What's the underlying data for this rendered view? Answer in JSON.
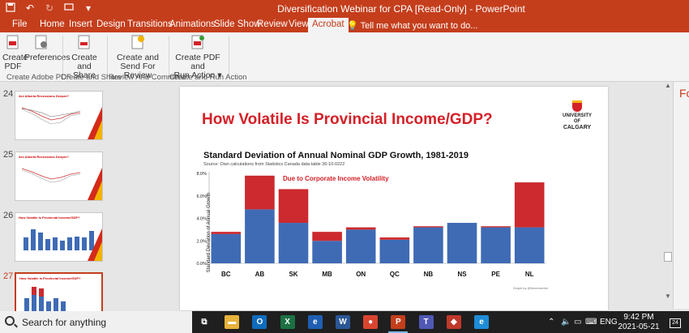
{
  "titlebar": {
    "title": "Diversification Webinar for CPA [Read-Only]  -  PowerPoint"
  },
  "menu": {
    "tabs": [
      "File",
      "Home",
      "Insert",
      "Design",
      "Transitions",
      "Animations",
      "Slide Show",
      "Review",
      "View",
      "Acrobat"
    ],
    "active_tab": "Acrobat",
    "tell_me": "Tell me what you want to do..."
  },
  "ribbon": {
    "buttons": [
      {
        "label1": "Create",
        "label2": "PDF"
      },
      {
        "label1": "Preferences",
        "label2": ""
      },
      {
        "label1": "Create",
        "label2": "and Share"
      },
      {
        "label1": "Create and",
        "label2": "Send For Review"
      },
      {
        "label1": "Create PDF and",
        "label2": "Run Action ▾"
      }
    ],
    "groups": [
      "Create Adobe PDF",
      "Create and Share",
      "Review And Comment",
      "Create and Run Action"
    ]
  },
  "thumbnails": [
    {
      "number": "24",
      "title": "Are Alberta Recessions Deeper?"
    },
    {
      "number": "25",
      "title": "Are Alberta Recessions Deeper?"
    },
    {
      "number": "26",
      "title": "How Volatile Is Provincial Income/GDP?"
    },
    {
      "number": "27",
      "title": "How Volatile Is Provincial Income/GDP?"
    }
  ],
  "slide": {
    "title": "How Volatile Is Provincial Income/GDP?",
    "logo_line1": "UNIVERSITY OF",
    "logo_line2": "CALGARY",
    "credit": "Graph by @trevortombe"
  },
  "right_panel": {
    "letter": "Fo"
  },
  "chart_data": {
    "type": "bar",
    "stacked": true,
    "title": "Standard Deviation of Annual Nominal GDP Growth, 1981-2019",
    "subtitle": "Source: Own calculations from Statistics Canada data table 36-10-0222",
    "annotation": "Due to Corporate Income Volatility",
    "ylabel": "Standard Deviation of Annual Growth",
    "xlabel": "",
    "categories": [
      "BC",
      "AB",
      "SK",
      "MB",
      "ON",
      "QC",
      "NB",
      "NS",
      "PE",
      "NL"
    ],
    "yticks": [
      "0.0%",
      "2.0%",
      "4.0%",
      "6.0%",
      "8.0%"
    ],
    "ylim": [
      0,
      8
    ],
    "series": [
      {
        "values": [
          2.6,
          4.8,
          3.6,
          2.0,
          3.0,
          2.1,
          3.2,
          3.6,
          3.2,
          3.2
        ],
        "color": "#3f6bb5"
      },
      {
        "values": [
          0.2,
          3.0,
          3.0,
          0.8,
          0.2,
          0.2,
          0.1,
          0.0,
          0.1,
          4.0
        ],
        "color": "#cc2a2f"
      }
    ],
    "grid": false,
    "legend": "none"
  },
  "taskbar": {
    "search_text": "Search for anything",
    "apps": [
      {
        "name": "task-view",
        "glyph": "⧉",
        "color": "#1f1f1f"
      },
      {
        "name": "file-explorer",
        "glyph": "▬",
        "color": "#e6b23a"
      },
      {
        "name": "outlook",
        "glyph": "O",
        "color": "#0f6cbd"
      },
      {
        "name": "excel",
        "glyph": "X",
        "color": "#1d7044"
      },
      {
        "name": "internet-explorer",
        "glyph": "e",
        "color": "#1f5fb3"
      },
      {
        "name": "word",
        "glyph": "W",
        "color": "#2b5797"
      },
      {
        "name": "chrome",
        "glyph": "●",
        "color": "#d9442f"
      },
      {
        "name": "powerpoint",
        "glyph": "P",
        "color": "#c43e1c"
      },
      {
        "name": "teams",
        "glyph": "T",
        "color": "#5058b5"
      },
      {
        "name": "security",
        "glyph": "◆",
        "color": "#c0392b"
      },
      {
        "name": "edge",
        "glyph": "e",
        "color": "#1e8cd6"
      }
    ],
    "language": "ENG",
    "time": "9:42 PM",
    "date": "2021-05-21",
    "notifications": "24"
  }
}
